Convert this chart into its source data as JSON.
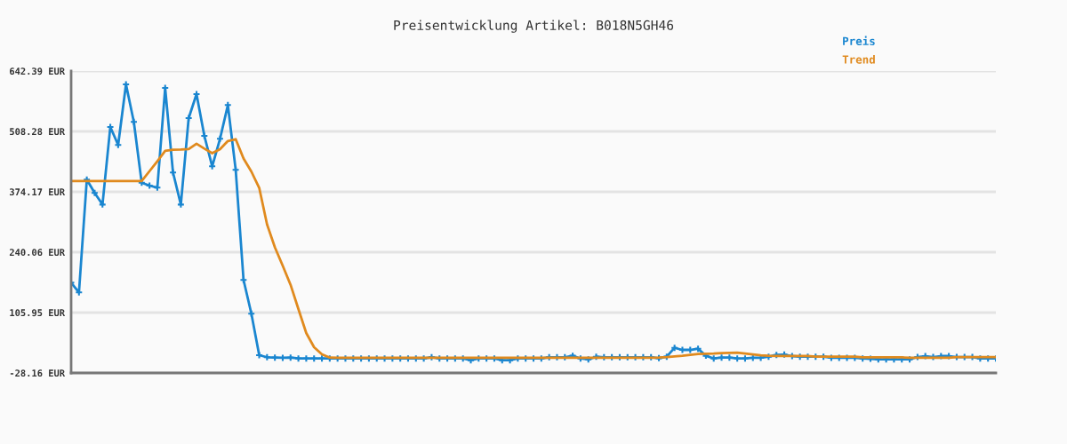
{
  "chart_data": {
    "type": "line",
    "title": "Preisentwicklung Artikel: B018N5GH46",
    "categories": [
      null,
      null,
      null,
      null,
      null,
      null,
      null,
      null,
      null,
      null,
      null,
      null,
      null,
      null,
      null,
      null,
      null,
      null,
      null,
      null,
      null,
      null,
      null,
      null,
      null,
      null,
      null,
      null,
      null,
      null,
      null,
      null,
      null,
      null,
      null,
      null,
      null,
      null,
      null,
      null,
      null,
      null,
      null,
      null,
      null,
      null,
      null,
      null,
      null,
      null,
      null,
      null,
      null,
      null,
      null,
      null,
      null,
      null,
      null,
      null,
      null,
      null,
      null,
      null,
      null,
      null,
      null,
      null,
      null,
      null,
      null,
      null,
      null,
      null,
      null,
      null,
      null,
      null,
      null,
      null,
      null,
      null,
      null,
      null,
      null,
      null,
      null,
      null,
      null,
      null,
      null,
      null,
      null,
      null,
      null,
      null,
      null,
      null,
      null,
      null,
      null,
      null,
      null,
      null,
      null,
      null,
      null,
      null,
      null,
      null,
      null,
      null,
      null,
      null,
      null,
      null,
      null,
      null,
      null
    ],
    "series": [
      {
        "name": "Preis",
        "color": "#1a86d0",
        "marker": "cross",
        "values": [
          172.4,
          150.8,
          401.2,
          371.6,
          345.9,
          518.2,
          478.1,
          612.8,
          529.4,
          394.5,
          388.0,
          383.4,
          604.9,
          417.0,
          345.9,
          537.9,
          591.1,
          498.4,
          430.8,
          491.9,
          566.8,
          422.9,
          178.4,
          103.4,
          11.3,
          6.8,
          6.0,
          5.4,
          6.0,
          4.0,
          4.0,
          4.0,
          4.0,
          4.0,
          4.0,
          4.0,
          4.0,
          4.0,
          4.0,
          4.0,
          4.0,
          4.0,
          4.0,
          4.0,
          4.0,
          4.0,
          6.7,
          4.0,
          4.0,
          4.0,
          4.0,
          0.1,
          4.0,
          4.0,
          4.0,
          0.1,
          0.1,
          4.0,
          4.0,
          4.0,
          4.0,
          6.7,
          6.7,
          6.7,
          10.0,
          4.0,
          2.0,
          7.9,
          6.7,
          6.7,
          6.7,
          6.7,
          6.7,
          6.7,
          6.7,
          4.7,
          8.0,
          27.7,
          23.1,
          23.1,
          25.7,
          10.0,
          4.0,
          6.0,
          6.0,
          4.0,
          4.0,
          5.4,
          5.4,
          8.0,
          11.9,
          12.6,
          9.3,
          8.0,
          8.0,
          8.0,
          8.0,
          5.4,
          5.4,
          5.4,
          5.4,
          4.0,
          3.4,
          2.1,
          2.1,
          2.1,
          2.1,
          2.1,
          7.3,
          9.3,
          7.3,
          9.3,
          9.3,
          7.3,
          7.3,
          7.3,
          4.0,
          4.0,
          4.0
        ]
      },
      {
        "name": "Trend",
        "color": "#e08a1e",
        "marker": "none",
        "values": [
          397.9,
          397.9,
          397.9,
          397.9,
          397.9,
          397.9,
          397.9,
          397.9,
          397.9,
          397.9,
          420.0,
          442.0,
          465.0,
          467.5,
          468.0,
          469.0,
          481.0,
          470.0,
          460.0,
          469.0,
          487.0,
          491.0,
          448.0,
          419.0,
          383.0,
          301.8,
          251.0,
          210.0,
          167.7,
          113.9,
          60.6,
          29.0,
          13.3,
          6.0,
          5.4,
          5.4,
          5.4,
          5.4,
          5.4,
          5.4,
          5.4,
          5.4,
          5.4,
          5.4,
          5.4,
          5.4,
          5.4,
          5.4,
          5.4,
          5.4,
          5.4,
          5.4,
          5.4,
          5.4,
          5.4,
          5.4,
          5.4,
          5.4,
          5.4,
          5.4,
          5.4,
          5.4,
          5.4,
          5.4,
          5.4,
          5.4,
          5.4,
          5.4,
          5.4,
          5.4,
          5.4,
          5.4,
          5.4,
          5.4,
          5.4,
          6.0,
          7.0,
          8.5,
          10.0,
          12.0,
          14.0,
          14.5,
          15.0,
          16.0,
          16.5,
          16.8,
          15.0,
          13.0,
          11.0,
          10.0,
          9.5,
          9.5,
          9.5,
          9.5,
          9.5,
          8.0,
          8.0,
          8.0,
          8.0,
          8.0,
          8.0,
          6.5,
          6.5,
          6.5,
          6.5,
          6.5,
          6.5,
          5.5,
          5.5,
          5.5,
          5.5,
          5.5,
          5.5,
          7.0,
          7.0,
          7.0,
          7.0,
          7.0,
          7.0
        ]
      }
    ],
    "ylim": [
      -28.16,
      642.39
    ],
    "yticks": [
      {
        "value": -28.16,
        "label": "-28.16 EUR"
      },
      {
        "value": 105.95,
        "label": "105.95 EUR"
      },
      {
        "value": 240.06,
        "label": "240.06 EUR"
      },
      {
        "value": 374.17,
        "label": "374.17 EUR"
      },
      {
        "value": 508.28,
        "label": "508.28 EUR"
      },
      {
        "value": 642.39,
        "label": "642.39 EUR"
      }
    ],
    "tick_labels": "y",
    "grid": "y",
    "legend": "top right"
  }
}
